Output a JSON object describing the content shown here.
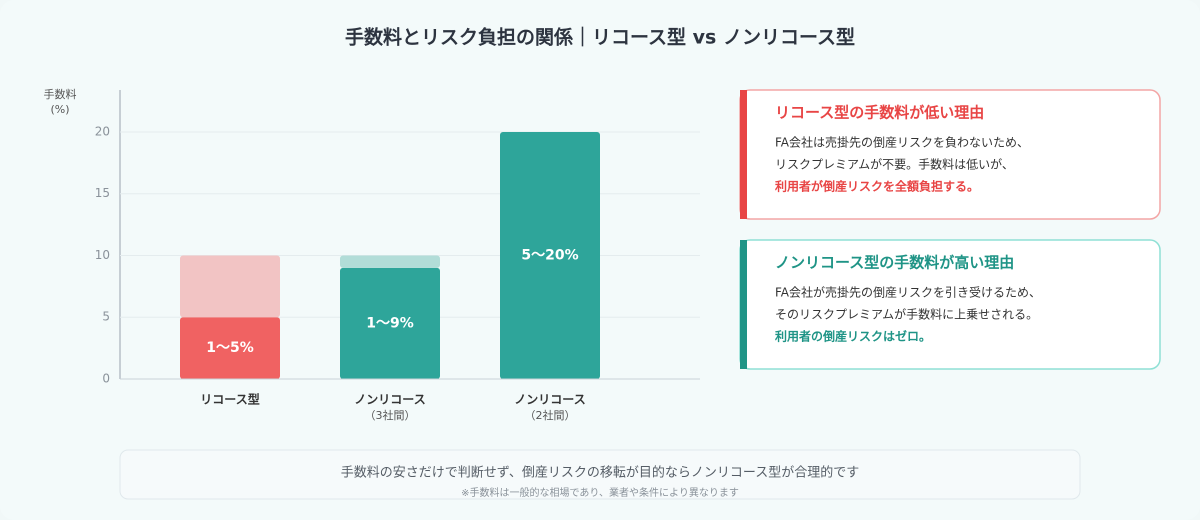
{
  "title": "手数料とリスク負担の関係｜リコース型 vs ノンリコース型",
  "chart_data": {
    "type": "bar",
    "ylabel": "手数料",
    "ylabel_unit": "(%)",
    "categories": [
      "リコース型",
      "ノンリコース",
      "ノンリコース"
    ],
    "category_sublabels": [
      null,
      "（3社間）",
      "（2社間）"
    ],
    "series": [
      {
        "colors": [
          "#f06262",
          "#2ea59a",
          "#2ea59a"
        ],
        "values": [
          5,
          9,
          20
        ]
      },
      {
        "colors": [
          "#f2c4c4",
          "#b2ddd8",
          "#b2ddd8"
        ],
        "values": [
          5,
          1,
          0
        ]
      }
    ],
    "bar_labels": [
      "1〜5%",
      "1〜9%",
      "5〜20%"
    ],
    "ylim": [
      0,
      23.4
    ],
    "yticks": [
      0,
      5,
      10,
      15,
      20
    ],
    "grid": true
  },
  "panels": [
    {
      "title": "リコース型の手数料が低い理由",
      "accent": "#e84545",
      "border": "#f3a5a5",
      "lines": [
        "FA会社は売掛先の倒産リスクを負わないため、",
        "リスクプレミアムが不要。手数料は低いが、"
      ],
      "highlight": "利用者が倒産リスクを全額負担する。"
    },
    {
      "title": "ノンリコース型の手数料が高い理由",
      "accent": "#1f9486",
      "border": "#8fe0d5",
      "lines": [
        "FA会社が売掛先の倒産リスクを引き受けるため、",
        "そのリスクプレミアムが手数料に上乗せされる。"
      ],
      "highlight": "利用者の倒産リスクはゼロ。"
    }
  ],
  "footer": {
    "text": "手数料の安さだけで判断せず、倒産リスクの移転が目的ならノンリコース型が合理的です",
    "note": "※手数料は一般的な相場であり、業者や条件により異なります"
  }
}
